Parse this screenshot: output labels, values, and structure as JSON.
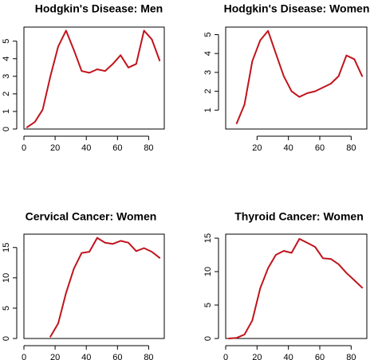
{
  "chart_data": [
    {
      "type": "line",
      "title": "Hodgkin's Disease: Men",
      "xlabel": "",
      "ylabel": "",
      "xlim": [
        0,
        90
      ],
      "ylim": [
        0,
        5.8
      ],
      "xticks": [
        0,
        20,
        40,
        60,
        80
      ],
      "yticks": [
        0,
        1,
        2,
        3,
        4,
        5
      ],
      "color": "#c0141c",
      "series": [
        {
          "x": [
            2,
            7,
            12,
            17,
            22,
            27,
            32,
            37,
            42,
            47,
            52,
            57,
            62,
            67,
            72,
            77,
            82,
            87
          ],
          "y": [
            0.1,
            0.4,
            1.1,
            3.0,
            4.7,
            5.6,
            4.5,
            3.3,
            3.2,
            3.4,
            3.3,
            3.7,
            4.2,
            3.5,
            3.7,
            5.6,
            5.1,
            3.9
          ]
        }
      ]
    },
    {
      "type": "line",
      "title": "Hodgkin's Disease: Women",
      "xlabel": "",
      "ylabel": "",
      "xlim": [
        0,
        90
      ],
      "ylim": [
        0,
        5.4
      ],
      "xticks": [
        20,
        40,
        60,
        80
      ],
      "yticks": [
        1,
        2,
        3,
        4,
        5
      ],
      "color": "#c0141c",
      "series": [
        {
          "x": [
            7,
            12,
            17,
            22,
            27,
            32,
            37,
            42,
            47,
            52,
            57,
            62,
            67,
            72,
            77,
            82,
            87
          ],
          "y": [
            0.3,
            1.3,
            3.6,
            4.7,
            5.2,
            4.0,
            2.8,
            2.0,
            1.7,
            1.9,
            2.0,
            2.2,
            2.4,
            2.8,
            3.9,
            3.7,
            2.8
          ]
        }
      ]
    },
    {
      "type": "line",
      "title": "Cervical Cancer: Women",
      "xlabel": "",
      "ylabel": "",
      "xlim": [
        0,
        90
      ],
      "ylim": [
        0,
        17.2
      ],
      "xticks": [
        0,
        20,
        40,
        60,
        80
      ],
      "yticks": [
        0,
        5,
        10,
        15
      ],
      "color": "#c0141c",
      "series": [
        {
          "x": [
            17,
            22,
            27,
            32,
            37,
            42,
            47,
            52,
            57,
            62,
            67,
            72,
            77,
            82,
            87
          ],
          "y": [
            0.3,
            2.5,
            7.5,
            11.5,
            14.1,
            14.3,
            16.6,
            15.8,
            15.6,
            16.1,
            15.8,
            14.4,
            14.9,
            14.3,
            13.3
          ]
        }
      ]
    },
    {
      "type": "line",
      "title": "Thyroid Cancer: Women",
      "xlabel": "",
      "ylabel": "",
      "xlim": [
        0,
        90
      ],
      "ylim": [
        0,
        15.6
      ],
      "xticks": [
        0,
        20,
        40,
        60,
        80
      ],
      "yticks": [
        0,
        5,
        10,
        15
      ],
      "color": "#c0141c",
      "series": [
        {
          "x": [
            2,
            7,
            12,
            17,
            22,
            27,
            32,
            37,
            42,
            47,
            52,
            57,
            62,
            67,
            72,
            77,
            82,
            87
          ],
          "y": [
            0.0,
            0.1,
            0.6,
            2.7,
            7.5,
            10.5,
            12.5,
            13.1,
            12.8,
            14.9,
            14.3,
            13.7,
            12.0,
            11.9,
            11.1,
            9.8,
            8.7,
            7.6
          ]
        }
      ]
    }
  ]
}
